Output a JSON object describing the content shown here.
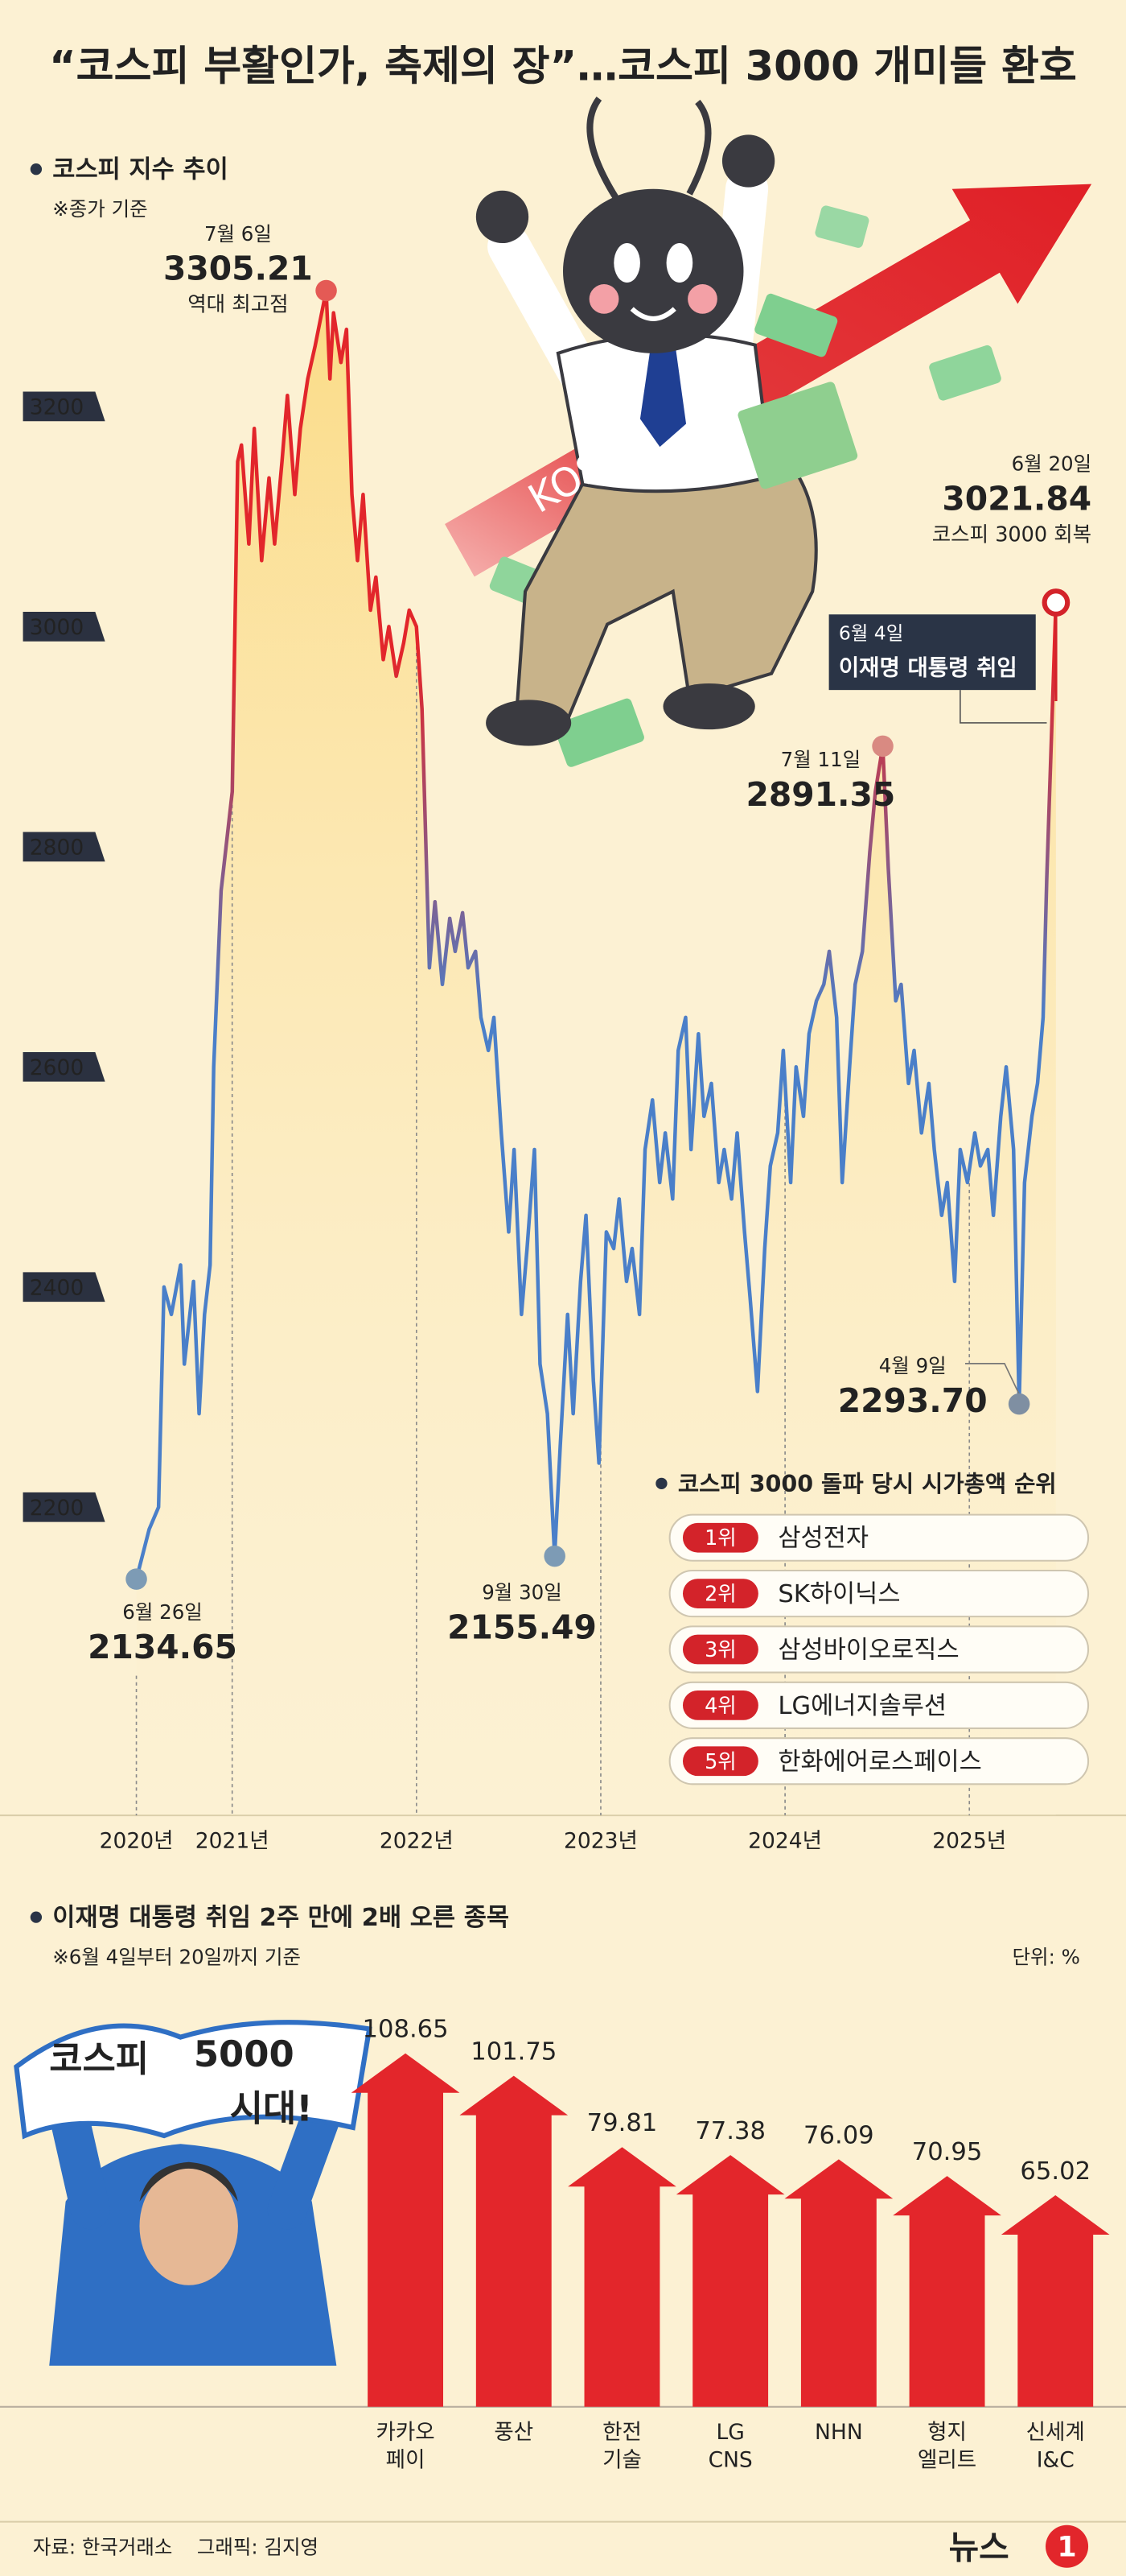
{
  "title": "“코스피 부활인가, 축제의 장”…코스피 3000 개미들 환호",
  "chart_data": [
    {
      "type": "line",
      "title": "코스피 지수 추이",
      "subtitle": "※종가 기준",
      "illustration_text": "KOSPI",
      "x": [
        2020.48,
        2020.55,
        2020.6,
        2020.63,
        2020.67,
        2020.72,
        2020.74,
        2020.79,
        2020.82,
        2020.85,
        2020.88,
        2020.9,
        2020.94,
        2020.97,
        2021.0,
        2021.03,
        2021.05,
        2021.09,
        2021.12,
        2021.16,
        2021.2,
        2021.23,
        2021.27,
        2021.3,
        2021.34,
        2021.37,
        2021.41,
        2021.45,
        2021.51,
        2021.53,
        2021.55,
        2021.59,
        2021.62,
        2021.65,
        2021.68,
        2021.71,
        2021.75,
        2021.78,
        2021.82,
        2021.85,
        2021.89,
        2021.93,
        2021.96,
        2022.0,
        2022.03,
        2022.07,
        2022.1,
        2022.14,
        2022.18,
        2022.21,
        2022.25,
        2022.28,
        2022.32,
        2022.35,
        2022.39,
        2022.42,
        2022.46,
        2022.5,
        2022.53,
        2022.57,
        2022.6,
        2022.64,
        2022.67,
        2022.71,
        2022.75,
        2022.78,
        2022.82,
        2022.85,
        2022.89,
        2022.92,
        2022.96,
        2022.99,
        2023.03,
        2023.07,
        2023.1,
        2023.14,
        2023.17,
        2023.21,
        2023.24,
        2023.28,
        2023.32,
        2023.35,
        2023.39,
        2023.42,
        2023.46,
        2023.49,
        2023.53,
        2023.56,
        2023.6,
        2023.64,
        2023.67,
        2023.71,
        2023.74,
        2023.78,
        2023.81,
        2023.85,
        2023.89,
        2023.92,
        2023.96,
        2023.99,
        2024.03,
        2024.06,
        2024.1,
        2024.13,
        2024.17,
        2024.21,
        2024.24,
        2024.28,
        2024.31,
        2024.35,
        2024.38,
        2024.42,
        2024.46,
        2024.49,
        2024.53,
        2024.56,
        2024.6,
        2024.63,
        2024.67,
        2024.7,
        2024.74,
        2024.78,
        2024.81,
        2024.85,
        2024.88,
        2024.92,
        2024.95,
        2024.99,
        2025.03,
        2025.06,
        2025.1,
        2025.13,
        2025.17,
        2025.2,
        2025.24,
        2025.27,
        2025.3,
        2025.34,
        2025.37,
        2025.4,
        2025.42,
        2025.47
      ],
      "values": [
        2134.65,
        2180,
        2200,
        2400,
        2375,
        2420,
        2330,
        2405,
        2285,
        2375,
        2420,
        2600,
        2760,
        2805,
        2850,
        3150,
        3165,
        3075,
        3180,
        3060,
        3135,
        3075,
        3150,
        3210,
        3120,
        3180,
        3225,
        3255,
        3305.21,
        3225,
        3285,
        3240,
        3270,
        3120,
        3060,
        3120,
        3015,
        3045,
        2970,
        3000,
        2955,
        2985,
        3015,
        3000,
        2925,
        2690,
        2750,
        2675,
        2735,
        2705,
        2740,
        2690,
        2705,
        2645,
        2615,
        2645,
        2540,
        2450,
        2525,
        2375,
        2435,
        2525,
        2330,
        2285,
        2155.49,
        2255,
        2375,
        2285,
        2405,
        2465,
        2315,
        2240,
        2450,
        2435,
        2480,
        2405,
        2435,
        2375,
        2525,
        2570,
        2495,
        2540,
        2480,
        2615,
        2645,
        2525,
        2630,
        2555,
        2585,
        2495,
        2525,
        2480,
        2540,
        2450,
        2390,
        2305,
        2435,
        2510,
        2540,
        2615,
        2495,
        2600,
        2555,
        2630,
        2660,
        2675,
        2705,
        2645,
        2495,
        2600,
        2675,
        2705,
        2795,
        2850,
        2891.35,
        2780,
        2660,
        2675,
        2585,
        2615,
        2540,
        2585,
        2525,
        2465,
        2495,
        2405,
        2525,
        2495,
        2540,
        2510,
        2525,
        2465,
        2555,
        2600,
        2525,
        2293.7,
        2495,
        2555,
        2585,
        2645,
        2770,
        3021.84
      ],
      "color_high": "#e2262b",
      "color_low": "#4a7fc9",
      "area_color": "#fbd97e",
      "xlim": [
        2019.74,
        2025.85
      ],
      "ylim": [
        1920,
        3420
      ],
      "xticks": [
        {
          "value": 2020.48,
          "label": "2020년"
        },
        {
          "value": 2021,
          "label": "2021년"
        },
        {
          "value": 2022,
          "label": "2022년"
        },
        {
          "value": 2023,
          "label": "2023년"
        },
        {
          "value": 2024,
          "label": "2024년"
        },
        {
          "value": 2025,
          "label": "2025년"
        }
      ],
      "yticks": [
        2200,
        2400,
        2600,
        2800,
        3000,
        3200
      ],
      "annotations": [
        {
          "date": "6월 26일",
          "x": 2020.48,
          "value": 2134.65,
          "color": "#1f4f96",
          "marker": "#7d9bb5"
        },
        {
          "date": "7월 6일",
          "x": 2021.51,
          "value": 3305.21,
          "note": "역대 최고점",
          "color": "#d3232a",
          "marker": "#e45a55"
        },
        {
          "date": "9월 30일",
          "x": 2022.75,
          "value": 2155.49,
          "color": "#1f4f96",
          "marker": "#7d9bb5"
        },
        {
          "date": "6월 4일",
          "x": 2025.42,
          "label": "이재명 대통령 취임",
          "color": "#2a3446"
        },
        {
          "date": "7월 11일",
          "x": 2024.53,
          "value": 2891.35,
          "color": "#b65a50",
          "marker": "#d98a82"
        },
        {
          "date": "4월 9일",
          "x": 2025.27,
          "value": 2293.7,
          "value_label": "2293.70",
          "color": "#1f4f96",
          "marker": "#7f8fa2"
        },
        {
          "date": "6월 20일",
          "x": 2025.47,
          "value": 3021.84,
          "note": "코스피 3000 회복",
          "color": "#d3232a",
          "marker": "#d3232a"
        }
      ],
      "ranking": {
        "title": "코스피 3000 돌파 당시 시가총액 순위",
        "items": [
          {
            "rank": "1위",
            "name": "삼성전자"
          },
          {
            "rank": "2위",
            "name": "SK하이닉스"
          },
          {
            "rank": "3위",
            "name": "삼성바이오로직스"
          },
          {
            "rank": "4위",
            "name": "LG에너지솔루션"
          },
          {
            "rank": "5위",
            "name": "한화에어로스페이스"
          }
        ]
      }
    },
    {
      "type": "bar",
      "title": "이재명 대통령 취임 2주 만에 2배 오른 종목",
      "subtitle": "※6월 4일부터 20일까지 기준",
      "unit": "단위: %",
      "categories": [
        [
          "카카오",
          "페이"
        ],
        [
          "풍산"
        ],
        [
          "한전",
          "기술"
        ],
        [
          "LG",
          "CNS"
        ],
        [
          "NHN"
        ],
        [
          "형지",
          "엘리트"
        ],
        [
          "신세계",
          "I&C"
        ]
      ],
      "values": [
        108.65,
        101.75,
        79.81,
        77.38,
        76.09,
        70.95,
        65.02
      ],
      "color": "#e3262b",
      "sign": [
        "코스피",
        "5000",
        "시대!"
      ]
    }
  ],
  "footer": {
    "source": "자료: 한국거래소",
    "credit": "그래픽: 김지영",
    "logo": [
      "뉴스",
      "1"
    ]
  }
}
